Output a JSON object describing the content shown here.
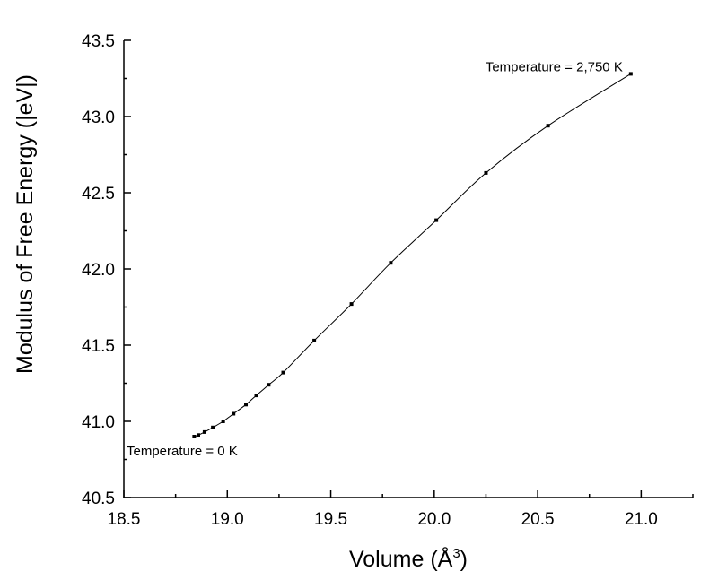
{
  "chart_data": {
    "type": "line",
    "xlabel": "Volume (Å",
    "xlabel_sup": "3",
    "xlabel_end": ")",
    "ylabel": "Modulus of Free Energy (|eV|)",
    "xlim": [
      18.5,
      21.25
    ],
    "ylim": [
      40.5,
      43.5
    ],
    "x_ticks": [
      18.5,
      19.0,
      19.5,
      20.0,
      20.5,
      21.0
    ],
    "x_tick_labels": [
      "18.5",
      "19.0",
      "19.5",
      "20.0",
      "20.5",
      "21.0"
    ],
    "y_ticks": [
      40.5,
      41.0,
      41.5,
      42.0,
      42.5,
      43.0,
      43.5
    ],
    "y_tick_labels": [
      "40.5",
      "41.0",
      "41.5",
      "42.0",
      "42.5",
      "43.0",
      "43.5"
    ],
    "grid": false,
    "series": [
      {
        "x": [
          18.84,
          18.86,
          18.89,
          18.93,
          18.98,
          19.03,
          19.09,
          19.14,
          19.2,
          19.27,
          19.42,
          19.6,
          19.79,
          20.01,
          20.25,
          20.55,
          20.95
        ],
        "y": [
          40.9,
          40.91,
          40.93,
          40.96,
          41.0,
          41.05,
          41.11,
          41.17,
          41.24,
          41.32,
          41.53,
          41.77,
          42.04,
          42.32,
          42.63,
          42.94,
          43.28
        ]
      }
    ],
    "annotations": [
      {
        "text": "Temperature = 2,750 K",
        "x": 20.95,
        "y": 43.28,
        "anchor": "end-left"
      },
      {
        "text": "Temperature = 0 K",
        "x": 18.84,
        "y": 40.9,
        "anchor": "below"
      }
    ]
  }
}
